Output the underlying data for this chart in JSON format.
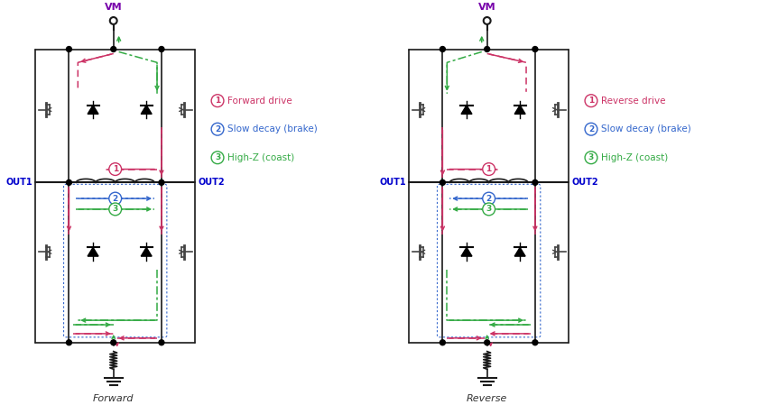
{
  "title_left": "Forward",
  "title_right": "Reverse",
  "legend_items": [
    {
      "num": "1",
      "color": "#cc3366",
      "label": "Forward drive",
      "label_right": "Reverse drive"
    },
    {
      "num": "2",
      "color": "#3366cc",
      "label": "Slow decay (brake)",
      "label_right": "Slow decay (brake)"
    },
    {
      "num": "3",
      "color": "#33aa44",
      "label": "High-Z (coast)",
      "label_right": "High-Z (coast)"
    }
  ],
  "vm_label": "VM",
  "out1_label": "OUT1",
  "out2_label": "OUT2",
  "bg_color": "#ffffff",
  "circuit_color": "#1a1a1a",
  "pink_color": "#cc3366",
  "blue_color": "#3366cc",
  "green_color": "#33aa44",
  "node_color": "#000000"
}
